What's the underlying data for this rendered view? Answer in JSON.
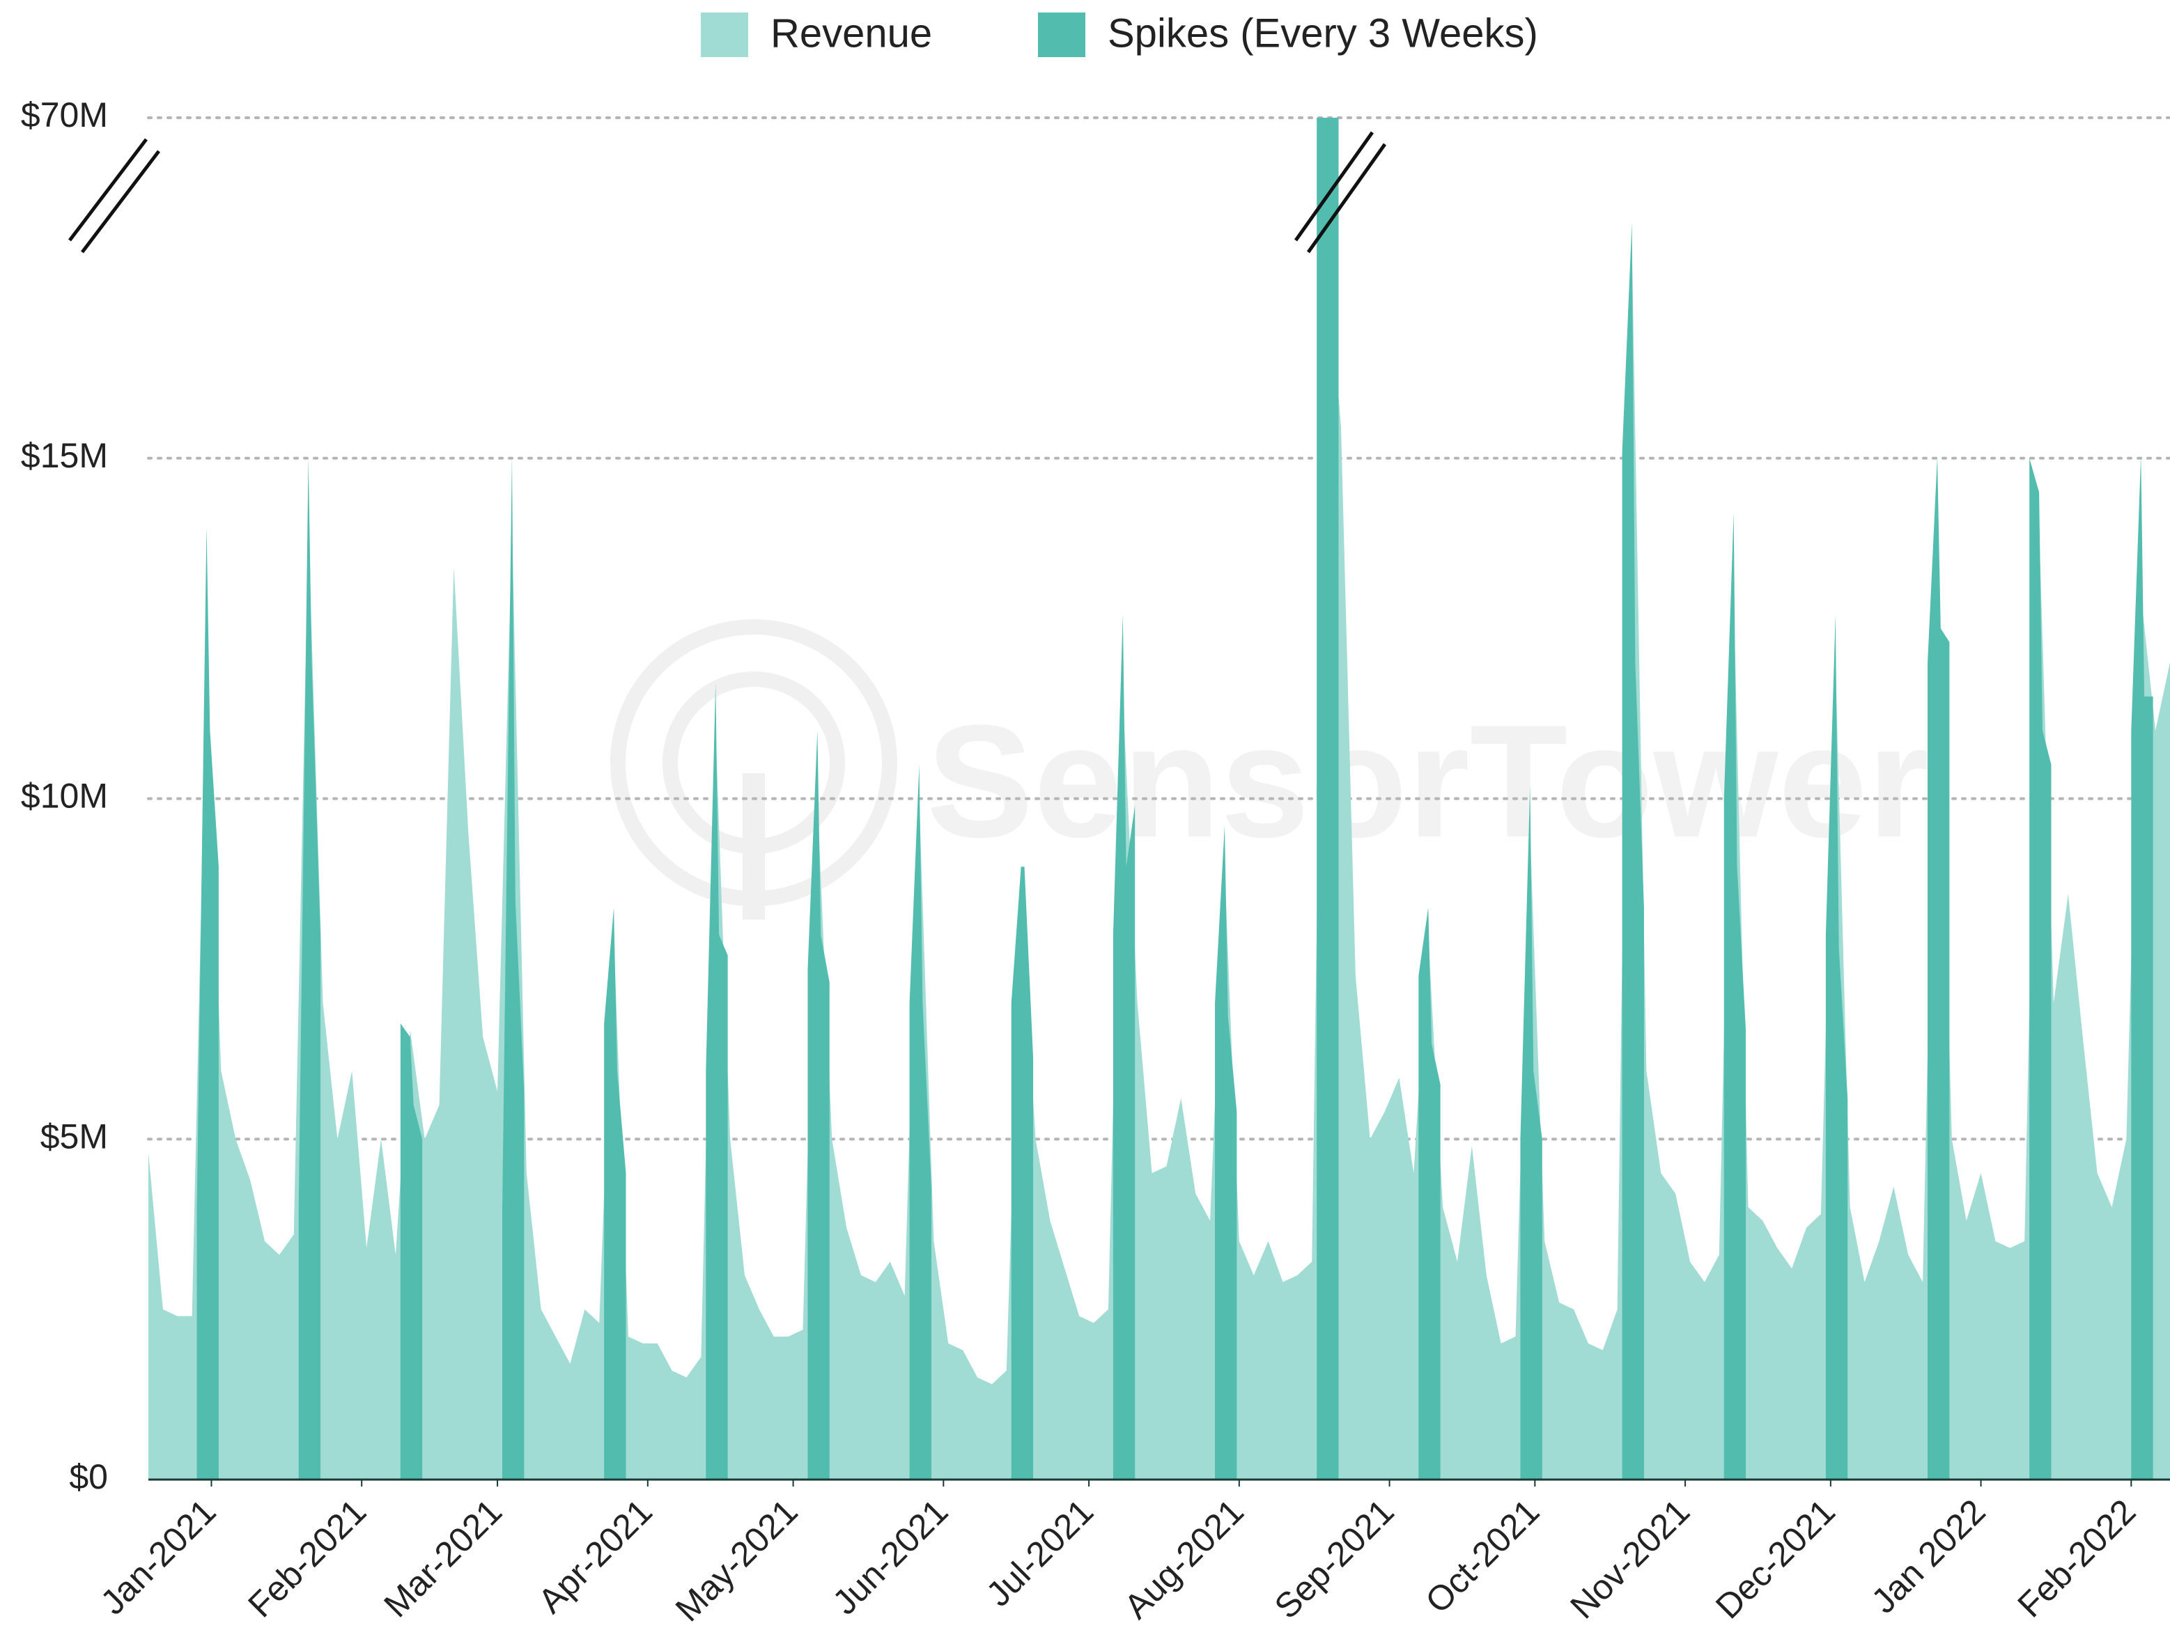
{
  "chart_data": {
    "type": "area",
    "watermark": "SensorTower",
    "y_scale": "broken",
    "grid": true,
    "legend": "top",
    "xlim": [
      0,
      417
    ],
    "xticks": [
      {
        "value": 13,
        "label": "Jan-2021"
      },
      {
        "value": 44,
        "label": "Feb-2021"
      },
      {
        "value": 72,
        "label": "Mar-2021"
      },
      {
        "value": 103,
        "label": "Apr-2021"
      },
      {
        "value": 133,
        "label": "May-2021"
      },
      {
        "value": 164,
        "label": "Jun-2021"
      },
      {
        "value": 194,
        "label": "Jul-2021"
      },
      {
        "value": 225,
        "label": "Aug-2021"
      },
      {
        "value": 256,
        "label": "Sep-2021"
      },
      {
        "value": 286,
        "label": "Oct-2021"
      },
      {
        "value": 317,
        "label": "Nov-2021"
      },
      {
        "value": 347,
        "label": "Dec-2021"
      },
      {
        "value": 378,
        "label": "Jan 2022"
      },
      {
        "value": 409,
        "label": "Feb-2022"
      }
    ],
    "ylim": [
      0,
      70
    ],
    "yticks": [
      {
        "value": 0,
        "label": "$0"
      },
      {
        "value": 5,
        "label": "$5M"
      },
      {
        "value": 10,
        "label": "$10M"
      },
      {
        "value": 15,
        "label": "$15M"
      },
      {
        "value": 70,
        "label": "$70M"
      }
    ],
    "series": [
      {
        "name": "Revenue",
        "color": "#a0dbd4",
        "x": [
          0,
          3,
          6,
          9,
          12,
          15,
          18,
          21,
          24,
          27,
          30,
          33,
          36,
          39,
          42,
          45,
          48,
          51,
          54,
          57,
          60,
          63,
          66,
          69,
          72,
          75,
          78,
          81,
          84,
          87,
          90,
          93,
          96,
          99,
          102,
          105,
          108,
          111,
          114,
          117,
          120,
          123,
          126,
          129,
          132,
          135,
          138,
          141,
          144,
          147,
          150,
          153,
          156,
          159,
          162,
          165,
          168,
          171,
          174,
          177,
          180,
          183,
          186,
          189,
          192,
          195,
          198,
          201,
          204,
          207,
          210,
          213,
          216,
          219,
          222,
          225,
          228,
          231,
          234,
          237,
          240,
          243,
          246,
          249,
          252,
          255,
          258,
          261,
          264,
          267,
          270,
          273,
          276,
          279,
          282,
          285,
          288,
          291,
          294,
          297,
          300,
          303,
          306,
          309,
          312,
          315,
          318,
          321,
          324,
          327,
          330,
          333,
          336,
          339,
          342,
          345,
          348,
          351,
          354,
          357,
          360,
          363,
          366,
          369,
          372,
          375,
          378,
          381,
          384,
          387,
          390,
          393,
          396,
          399,
          402,
          405,
          408,
          411,
          414,
          417
        ],
        "values": [
          4.8,
          2.5,
          2.4,
          2.4,
          12,
          6,
          5,
          4.4,
          3.5,
          3.3,
          3.6,
          14,
          7,
          5,
          6,
          3.4,
          5,
          3.3,
          6.6,
          5,
          5.5,
          13.4,
          9.5,
          6.5,
          5.7,
          14,
          4.5,
          2.5,
          2.1,
          1.7,
          2.5,
          2.3,
          8,
          2.1,
          2,
          2,
          1.6,
          1.5,
          1.8,
          11,
          5,
          3,
          2.5,
          2.1,
          2.1,
          2.2,
          10,
          5,
          3.7,
          3,
          2.9,
          3.2,
          2.7,
          10,
          3.5,
          2,
          1.9,
          1.5,
          1.4,
          1.6,
          8.5,
          5,
          3.8,
          3.1,
          2.4,
          2.3,
          2.5,
          11.5,
          7,
          4.5,
          4.6,
          5.6,
          4.2,
          3.8,
          9,
          3.5,
          3,
          3.5,
          2.9,
          3,
          3.2,
          50,
          20,
          7.4,
          5,
          5.4,
          5.9,
          4.5,
          8,
          4,
          3.2,
          4.9,
          3,
          2,
          2.1,
          9.5,
          3.5,
          2.6,
          2.5,
          2,
          1.9,
          2.5,
          50,
          6,
          4.5,
          4.2,
          3.2,
          2.9,
          3.3,
          13,
          4,
          3.8,
          3.4,
          3.1,
          3.7,
          3.9,
          12,
          4,
          2.9,
          3.5,
          4.3,
          3.3,
          2.9,
          13,
          5,
          3.8,
          4.5,
          3.5,
          3.4,
          3.5,
          14,
          7,
          8.6,
          6.5,
          4.5,
          4,
          5,
          13,
          11,
          12
        ]
      },
      {
        "name": "Spikes (Every 3 Weeks)",
        "color": "#52bcae",
        "x": [
          10,
          12,
          12.7,
          14.5,
          null,
          31,
          33,
          33.7,
          35.5,
          null,
          52,
          54,
          54.7,
          56.5,
          null,
          73,
          75,
          75.7,
          77.5,
          null,
          94,
          96,
          96.7,
          98.5,
          null,
          115,
          117,
          117.7,
          119.5,
          null,
          136,
          138,
          138.7,
          140.5,
          null,
          157,
          159,
          159.7,
          161.5,
          null,
          178,
          180,
          180.7,
          182.5,
          null,
          199,
          201,
          201.7,
          203.5,
          null,
          220,
          222,
          222.7,
          224.5,
          null,
          241,
          243,
          243.7,
          245.5,
          null,
          262,
          264,
          264.7,
          266.5,
          null,
          283,
          285,
          285.7,
          287.5,
          null,
          304,
          306,
          306.7,
          308.5,
          null,
          325,
          327,
          327.7,
          329.5,
          null,
          346,
          348,
          348.7,
          350.5,
          null,
          367,
          369,
          369.7,
          371.5,
          null,
          388,
          390,
          390.7,
          392.5,
          null,
          409,
          411,
          411.7,
          413.5
        ],
        "values": [
          4,
          14,
          11,
          9,
          null,
          4,
          15,
          12,
          8,
          null,
          6.7,
          6.5,
          5.5,
          5,
          null,
          4,
          15.5,
          8.5,
          5.7,
          null,
          6.7,
          8.4,
          6,
          4.5,
          null,
          6,
          11.7,
          8,
          7.7,
          null,
          7.5,
          11,
          8,
          7.3,
          null,
          7,
          10.5,
          7,
          4.3,
          null,
          7,
          9,
          9,
          6.2,
          null,
          8,
          12.7,
          9,
          9.9,
          null,
          7,
          9.6,
          6.8,
          5.4,
          null,
          70,
          70,
          70,
          70,
          null,
          7.4,
          8.4,
          6.4,
          5.8,
          null,
          5,
          10.2,
          6,
          5,
          null,
          16,
          53,
          12,
          8.4,
          null,
          10,
          14.2,
          9,
          6.6,
          null,
          8,
          12.7,
          7.8,
          5.6,
          null,
          12,
          15.2,
          12.5,
          12.3,
          null,
          15,
          14.5,
          11,
          10.5,
          null,
          11,
          15.5,
          11.5,
          11.5
        ]
      }
    ]
  }
}
